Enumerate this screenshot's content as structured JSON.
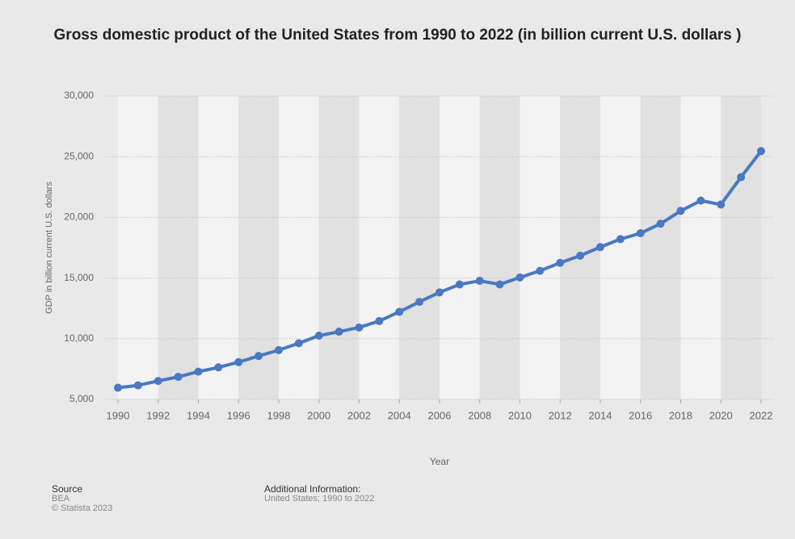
{
  "chart_data": {
    "type": "line",
    "title": "Gross domestic product of the United States from 1990 to 2022 (in billion current U.S. dollars )",
    "x_label": "Year",
    "y_label": "GDP in billion current U.S. dollars",
    "x": [
      1990,
      1991,
      1992,
      1993,
      1994,
      1995,
      1996,
      1997,
      1998,
      1999,
      2000,
      2001,
      2002,
      2003,
      2004,
      2005,
      2006,
      2007,
      2008,
      2009,
      2010,
      2011,
      2012,
      2013,
      2014,
      2015,
      2016,
      2017,
      2018,
      2019,
      2020,
      2021,
      2022
    ],
    "series": [
      {
        "name": "GDP",
        "color": "#4a78c2",
        "values": [
          5963,
          6158,
          6520,
          6859,
          7287,
          7640,
          8073,
          8578,
          9063,
          9631,
          10251,
          10582,
          10929,
          11457,
          12217,
          13039,
          13816,
          14474,
          14770,
          14478,
          15049,
          15600,
          16254,
          16843,
          17551,
          18206,
          18695,
          19477,
          20533,
          21381,
          21060,
          23315,
          25463
        ]
      }
    ],
    "xlim": [
      1990,
      2022
    ],
    "xticks": [
      1990,
      1992,
      1994,
      1996,
      1998,
      2000,
      2002,
      2004,
      2006,
      2008,
      2010,
      2012,
      2014,
      2016,
      2018,
      2020,
      2022
    ],
    "ylim": [
      5000,
      30000
    ],
    "yticks": [
      {
        "value": 5000,
        "label": "5,000"
      },
      {
        "value": 10000,
        "label": "10,000"
      },
      {
        "value": 15000,
        "label": "15,000"
      },
      {
        "value": 20000,
        "label": "20,000"
      },
      {
        "value": 25000,
        "label": "25,000"
      },
      {
        "value": 30000,
        "label": "30,000"
      }
    ],
    "grid": true
  },
  "source": {
    "heading": "Source",
    "name": "BEA",
    "copyright": "© Statista 2023",
    "info_heading": "Additional Information:",
    "info": "United States; 1990 to 2022"
  }
}
